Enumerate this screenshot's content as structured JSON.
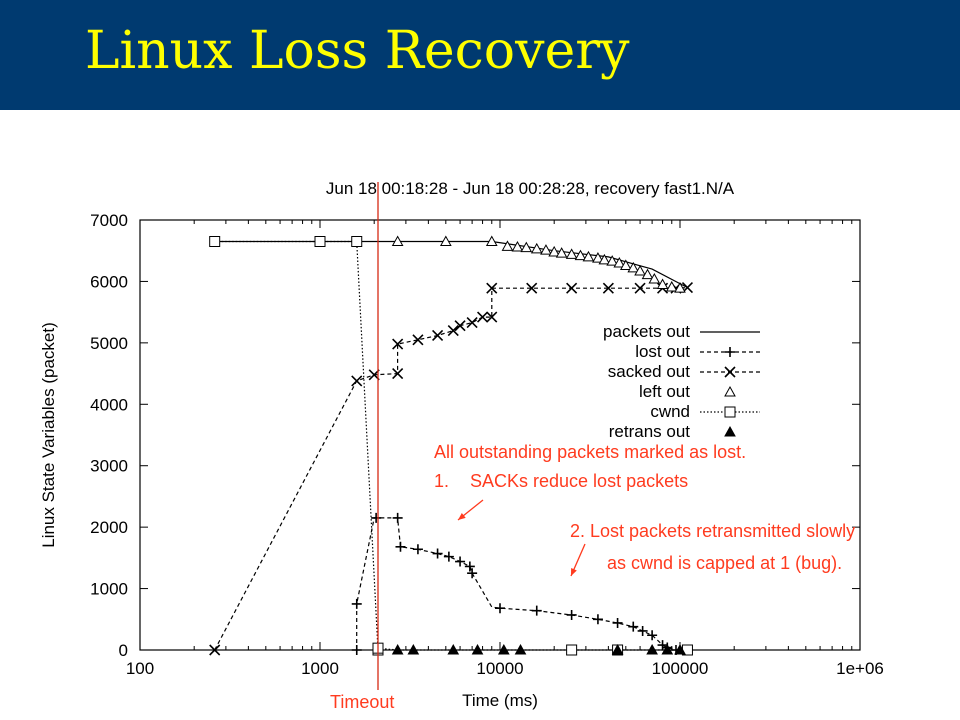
{
  "slide": {
    "title": "Linux Loss Recovery"
  },
  "annotations": {
    "outstanding": "All outstanding packets marked as lost.",
    "sacks": "SACKs reduce lost packets",
    "sacks_num": "1.",
    "retrans_line1": "2. Lost packets retransmitted slowly",
    "retrans_line2": "as cwnd is capped at 1 (bug).",
    "timeout": "Timeout"
  },
  "chart_data": {
    "type": "line",
    "title": "Jun 18 00:18:28 - Jun 18 00:28:28, recovery fast1.N/A",
    "xlabel": "Time (ms)",
    "ylabel": "Linux State Variables (packet)",
    "xscale": "log",
    "xlim": [
      100,
      1000000
    ],
    "ylim": [
      0,
      7000
    ],
    "xticks": [
      100,
      1000,
      10000,
      100000,
      1000000
    ],
    "xtick_labels": [
      "100",
      "1000",
      "10000",
      "100000",
      "1e+06"
    ],
    "yticks": [
      0,
      1000,
      2000,
      3000,
      4000,
      5000,
      6000,
      7000
    ],
    "ytick_labels": [
      "0",
      "1000",
      "2000",
      "3000",
      "4000",
      "5000",
      "6000",
      "7000"
    ],
    "legend_position": "right",
    "timeout_x": 2100,
    "series": [
      {
        "name": "packets out",
        "style": "solid",
        "marker": "none",
        "x": [
          260,
          1000,
          1600,
          2700,
          5000,
          9000,
          20000,
          40000,
          70000,
          110000
        ],
        "y": [
          6650,
          6650,
          6650,
          6650,
          6650,
          6650,
          6500,
          6400,
          6200,
          5900
        ]
      },
      {
        "name": "lost out",
        "style": "dashed",
        "marker": "plus",
        "x": [
          1600,
          1600,
          2000,
          2050,
          2700,
          2800,
          3500,
          4500,
          5200,
          6000,
          6800,
          7000,
          9000,
          10000,
          16000,
          25000,
          35000,
          45000,
          55000,
          62000,
          70000,
          75000,
          80000,
          85000,
          95000,
          110000
        ],
        "y": [
          0,
          750,
          2150,
          2150,
          2150,
          1680,
          1640,
          1570,
          1520,
          1440,
          1360,
          1250,
          700,
          680,
          640,
          570,
          500,
          440,
          380,
          310,
          240,
          160,
          80,
          40,
          0,
          0
        ],
        "markers_at": [
          1600,
          2050,
          2700,
          2800,
          3500,
          4500,
          5200,
          6000,
          6800,
          7000,
          10000,
          16000,
          25000,
          35000,
          45000,
          55000,
          62000,
          70000,
          80000,
          85000,
          95000
        ]
      },
      {
        "name": "sacked out",
        "style": "dashed",
        "marker": "cross",
        "x": [
          260,
          1600,
          2000,
          2700,
          2700,
          3500,
          4500,
          5500,
          6000,
          7000,
          8000,
          9000,
          9000,
          15000,
          25000,
          40000,
          60000,
          80000,
          95000,
          110000
        ],
        "y": [
          0,
          4380,
          4480,
          4500,
          4980,
          5050,
          5120,
          5200,
          5280,
          5330,
          5420,
          5420,
          5890,
          5890,
          5890,
          5890,
          5890,
          5890,
          5890,
          5900
        ]
      },
      {
        "name": "left out",
        "style": "none",
        "marker": "triangle",
        "x": [
          2700,
          5000,
          9000,
          11000,
          12500,
          14000,
          16000,
          18000,
          20000,
          22000,
          25000,
          28000,
          31000,
          35000,
          38000,
          42000,
          46000,
          50000,
          55000,
          60000,
          66000,
          72000,
          80000,
          90000,
          100000
        ],
        "y": [
          6650,
          6650,
          6650,
          6570,
          6560,
          6550,
          6530,
          6510,
          6480,
          6460,
          6440,
          6420,
          6400,
          6380,
          6350,
          6330,
          6300,
          6260,
          6220,
          6170,
          6110,
          6040,
          5950,
          5910,
          5890
        ]
      },
      {
        "name": "cwnd",
        "style": "dotted",
        "marker": "square",
        "x": [
          260,
          1000,
          1600,
          2100,
          2100,
          2700,
          4000,
          6000,
          10000,
          25000,
          45000,
          70000,
          110000
        ],
        "y": [
          6650,
          6650,
          6650,
          0,
          30,
          0,
          0,
          0,
          0,
          0,
          0,
          0,
          0
        ],
        "markers_at": [
          260,
          1000,
          1600,
          2100,
          25000,
          45000,
          110000
        ]
      },
      {
        "name": "retrans out",
        "style": "none",
        "marker": "filled-triangle",
        "x": [
          2700,
          3300,
          5500,
          7500,
          10500,
          13000,
          45000,
          70000,
          85000,
          100000
        ],
        "y": [
          0,
          0,
          0,
          0,
          0,
          0,
          0,
          0,
          0,
          0
        ]
      }
    ]
  }
}
